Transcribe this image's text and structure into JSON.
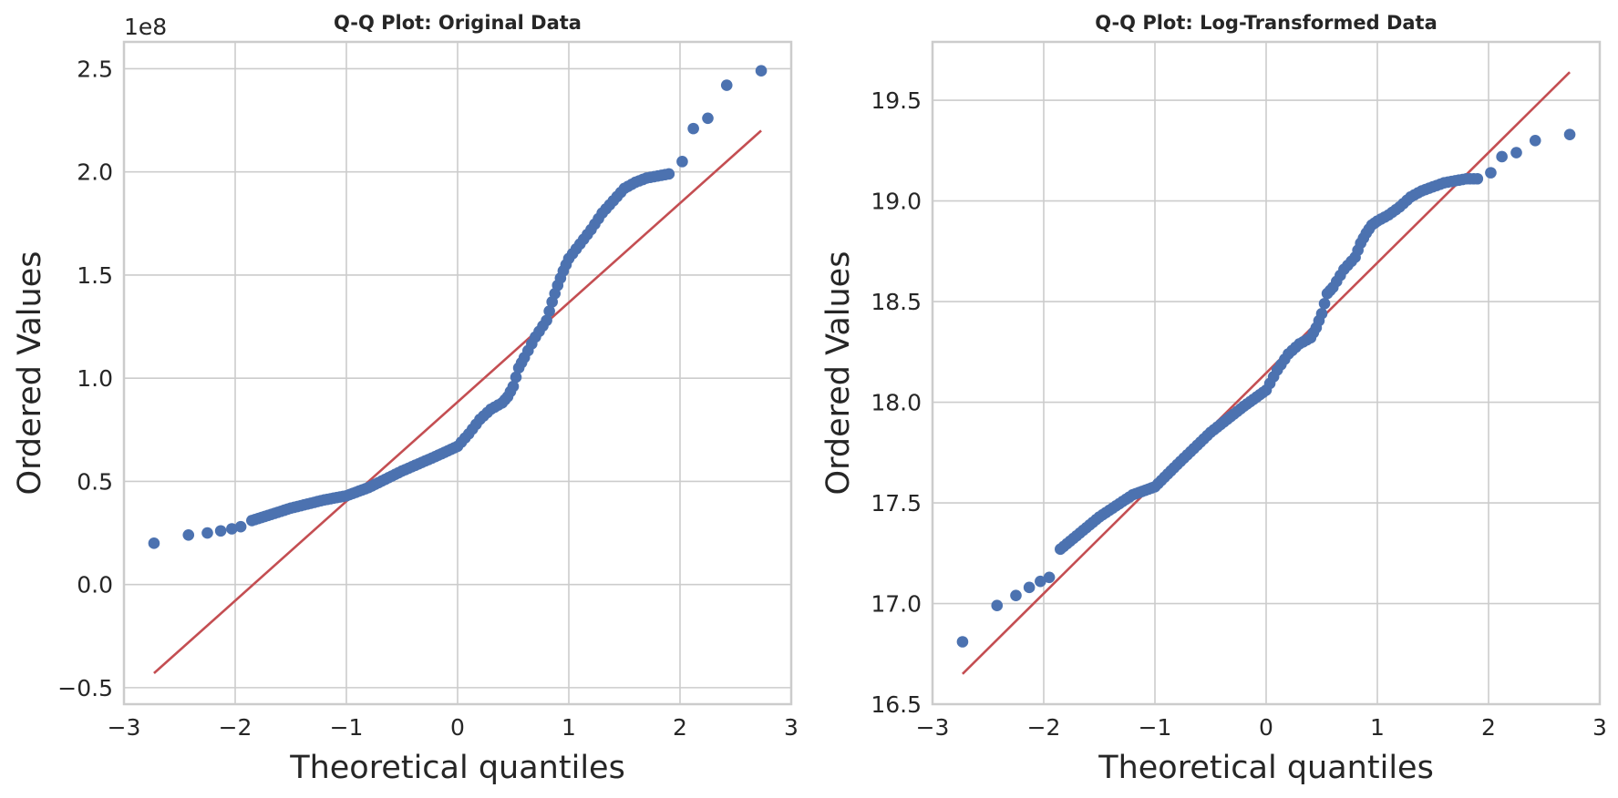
{
  "colors": {
    "points": "#4c72b0",
    "fit_line": "#c44e52",
    "grid": "#cccccc",
    "text": "#262626",
    "background": "#ffffff"
  },
  "chart_data": [
    {
      "type": "scatter",
      "title": "Q-Q Plot: Original Data",
      "xlabel": "Theoretical quantiles",
      "ylabel": "Ordered Values",
      "y_offset_label": "1e8",
      "xlim": [
        -3,
        3
      ],
      "ylim": [
        -0.58,
        2.63
      ],
      "xticks": [
        -3,
        -2,
        -1,
        0,
        1,
        2,
        3
      ],
      "xtick_labels": [
        "−3",
        "−2",
        "−1",
        "0",
        "1",
        "2",
        "3"
      ],
      "yticks": [
        -0.5,
        0.0,
        0.5,
        1.0,
        1.5,
        2.0,
        2.5
      ],
      "ytick_labels": [
        "−0.5",
        "0.0",
        "0.5",
        "1.0",
        "1.5",
        "2.0",
        "2.5"
      ],
      "grid": true,
      "scale_note": "y values in units of 1e8",
      "fit_line": {
        "x": [
          -2.73,
          2.73
        ],
        "y": [
          -0.43,
          2.2
        ]
      },
      "quantile_curve": {
        "x": [
          -1.85,
          -1.5,
          -1.2,
          -1.0,
          -0.8,
          -0.5,
          -0.2,
          0.0,
          0.1,
          0.2,
          0.3,
          0.4,
          0.45,
          0.5,
          0.55,
          0.6,
          0.7,
          0.8,
          0.85,
          0.9,
          0.95,
          1.0,
          1.1,
          1.2,
          1.3,
          1.4,
          1.5,
          1.6,
          1.7,
          1.8,
          1.9
        ],
        "y": [
          0.31,
          0.37,
          0.41,
          0.43,
          0.47,
          0.55,
          0.62,
          0.67,
          0.73,
          0.8,
          0.85,
          0.88,
          0.91,
          0.96,
          1.05,
          1.1,
          1.2,
          1.28,
          1.37,
          1.45,
          1.52,
          1.58,
          1.65,
          1.72,
          1.8,
          1.86,
          1.92,
          1.95,
          1.97,
          1.98,
          1.99
        ]
      },
      "outliers": {
        "x": [
          -2.73,
          -2.42,
          -2.25,
          -2.13,
          -2.03,
          -1.95,
          2.02,
          2.12,
          2.25,
          2.42,
          2.73
        ],
        "y": [
          0.2,
          0.24,
          0.25,
          0.26,
          0.27,
          0.28,
          2.05,
          2.21,
          2.26,
          2.42,
          2.49
        ]
      }
    },
    {
      "type": "scatter",
      "title": "Q-Q Plot: Log-Transformed Data",
      "xlabel": "Theoretical quantiles",
      "ylabel": "Ordered Values",
      "xlim": [
        -3,
        3
      ],
      "ylim": [
        16.5,
        19.79
      ],
      "xticks": [
        -3,
        -2,
        -1,
        0,
        1,
        2,
        3
      ],
      "xtick_labels": [
        "−3",
        "−2",
        "−1",
        "0",
        "1",
        "2",
        "3"
      ],
      "yticks": [
        16.5,
        17.0,
        17.5,
        18.0,
        18.5,
        19.0,
        19.5
      ],
      "ytick_labels": [
        "16.5",
        "17.0",
        "17.5",
        "18.0",
        "18.5",
        "19.0",
        "19.5"
      ],
      "grid": true,
      "fit_line": {
        "x": [
          -2.73,
          2.73
        ],
        "y": [
          16.65,
          19.64
        ]
      },
      "quantile_curve": {
        "x": [
          -1.85,
          -1.5,
          -1.2,
          -1.0,
          -0.8,
          -0.5,
          -0.2,
          0.0,
          0.1,
          0.2,
          0.3,
          0.4,
          0.45,
          0.5,
          0.55,
          0.6,
          0.7,
          0.8,
          0.85,
          0.9,
          0.95,
          1.0,
          1.1,
          1.2,
          1.3,
          1.4,
          1.5,
          1.6,
          1.7,
          1.8,
          1.9
        ],
        "y": [
          17.27,
          17.43,
          17.54,
          17.58,
          17.69,
          17.85,
          17.98,
          18.06,
          18.16,
          18.24,
          18.29,
          18.32,
          18.37,
          18.44,
          18.54,
          18.57,
          18.66,
          18.72,
          18.79,
          18.84,
          18.88,
          18.9,
          18.93,
          18.97,
          19.02,
          19.05,
          19.07,
          19.09,
          19.1,
          19.11,
          19.11
        ]
      },
      "outliers": {
        "x": [
          -2.73,
          -2.42,
          -2.25,
          -2.13,
          -2.03,
          -1.95,
          2.02,
          2.12,
          2.25,
          2.42,
          2.73
        ],
        "y": [
          16.81,
          16.99,
          17.04,
          17.08,
          17.11,
          17.13,
          19.14,
          19.22,
          19.24,
          19.3,
          19.33
        ]
      }
    }
  ]
}
